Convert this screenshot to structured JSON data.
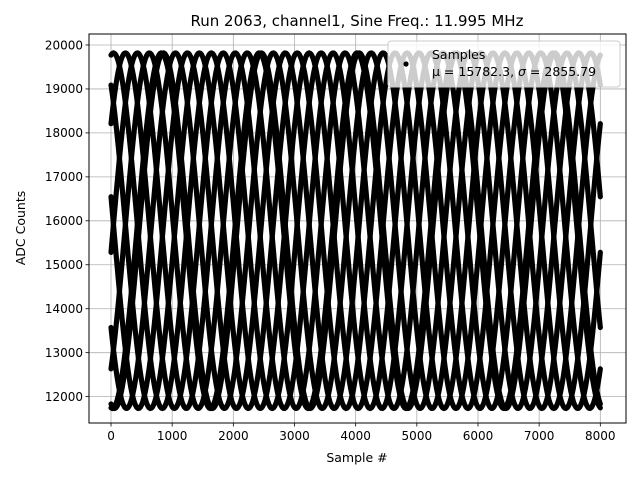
{
  "chart_data": {
    "type": "scatter",
    "title": "Run 2063, channel1, Sine Freq.: 11.995 MHz",
    "xlabel": "Sample #",
    "ylabel": "ADC Counts",
    "xlim": [
      -360,
      8420
    ],
    "ylim": [
      11400,
      20250
    ],
    "x_ticks": [
      0,
      1000,
      2000,
      3000,
      4000,
      5000,
      6000,
      7000,
      8000
    ],
    "y_ticks": [
      12000,
      13000,
      14000,
      15000,
      16000,
      17000,
      18000,
      19000,
      20000
    ],
    "x_tick_labels": [
      "0",
      "1000",
      "2000",
      "3000",
      "4000",
      "5000",
      "6000",
      "7000",
      "8000"
    ],
    "y_tick_labels": [
      "12000",
      "13000",
      "14000",
      "15000",
      "16000",
      "17000",
      "18000",
      "19000",
      "20000"
    ],
    "grid": true,
    "legend_position": "top-right",
    "legend": {
      "label": "Samples",
      "stats_prefix": "μ = 15782.3, ",
      "stats_sigma": "σ",
      "stats_suffix": " = 2855.79"
    },
    "series": [
      {
        "name": "Samples",
        "mean": 15782.3,
        "sigma": 2855.79,
        "color": "#000000",
        "envelope": {
          "x_start": 0,
          "x_end": 8000,
          "y_min": 11730,
          "y_max": 19820,
          "apparent_period": 1600,
          "phase_offsets_deg": [
            -95,
            -51,
            -7,
            37,
            81,
            125,
            169,
            213,
            257
          ]
        }
      }
    ]
  }
}
